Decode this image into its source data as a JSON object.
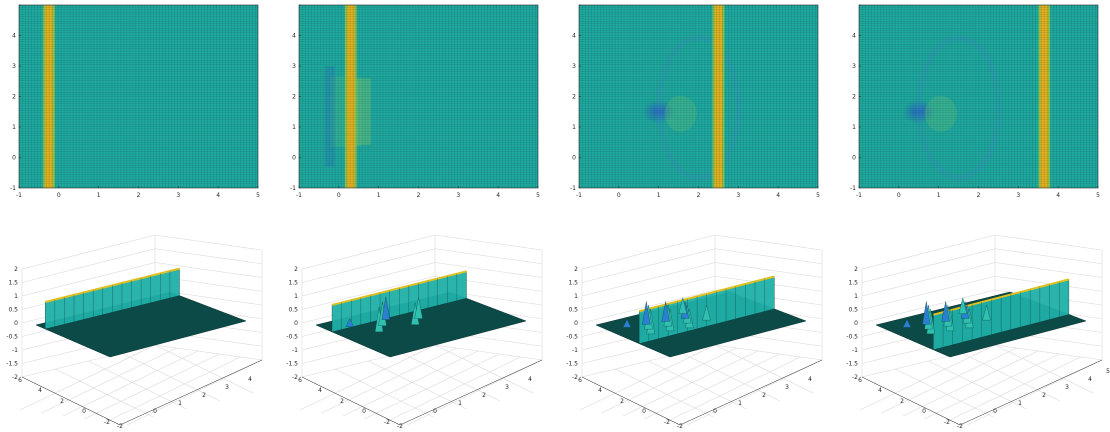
{
  "chart_data": [
    {
      "type": "heatmap",
      "panel": "top-1",
      "xlim": [
        -1,
        5
      ],
      "ylim": [
        -1,
        5
      ],
      "xticks": [
        "-1",
        "0",
        "1",
        "2",
        "3",
        "4",
        "5"
      ],
      "yticks": [
        "-1",
        "0",
        "1",
        "2",
        "3",
        "4"
      ],
      "wave_x": -0.25,
      "background_color": "#1faaa0",
      "peak_color": "#e8b21c",
      "trough_color": "#2a5fc8",
      "grid": true
    },
    {
      "type": "heatmap",
      "panel": "top-2",
      "xlim": [
        -1,
        5
      ],
      "ylim": [
        -1,
        5
      ],
      "xticks": [
        "-1",
        "0",
        "1",
        "2",
        "3",
        "4",
        "5"
      ],
      "yticks": [
        "-1",
        "0",
        "1",
        "2",
        "3",
        "4"
      ],
      "wave_x": 0.3,
      "obstacle_x": 0.0,
      "obstacle_y": [
        1.0,
        2.0
      ],
      "background_color": "#1faaa0",
      "peak_color": "#e8b21c",
      "trough_color": "#2a5fc8",
      "grid": true
    },
    {
      "type": "heatmap",
      "panel": "top-3",
      "xlim": [
        -1,
        5
      ],
      "ylim": [
        -1,
        5
      ],
      "xticks": [
        "-1",
        "0",
        "1",
        "2",
        "3",
        "4",
        "5"
      ],
      "yticks": [
        "-1",
        "0",
        "1",
        "2",
        "3",
        "4"
      ],
      "wave_x": 2.5,
      "scatter_center": [
        1.0,
        1.5
      ],
      "background_color": "#1faaa0",
      "peak_color": "#e8b21c",
      "trough_color": "#2a5fc8",
      "grid": true
    },
    {
      "type": "heatmap",
      "panel": "top-4",
      "xlim": [
        -1,
        5
      ],
      "ylim": [
        -1,
        5
      ],
      "xticks": [
        "-1",
        "0",
        "1",
        "2",
        "3",
        "4",
        "5"
      ],
      "yticks": [
        "-1",
        "0",
        "1",
        "2",
        "3",
        "4"
      ],
      "wave_x": 3.65,
      "scatter_center": [
        0.5,
        1.5
      ],
      "background_color": "#1faaa0",
      "peak_color": "#e8b21c",
      "trough_color": "#2a5fc8",
      "grid": true
    },
    {
      "type": "surface",
      "panel": "bottom-1",
      "zlim": [
        -2,
        2
      ],
      "zticks": [
        "-2",
        "-1.5",
        "-1",
        "-0.5",
        "0",
        "0.5",
        "1",
        "1.5",
        "2"
      ],
      "yticks": [
        "-2",
        "0",
        "2",
        "4",
        "6"
      ],
      "xticks": [
        "-2",
        "0",
        "1",
        "2",
        "3",
        "4"
      ],
      "wave_x": -0.25,
      "peak_height": 1.0,
      "plane_color": "#0c4a48",
      "peak_color": "#e0c020",
      "grid": true
    },
    {
      "type": "surface",
      "panel": "bottom-2",
      "zlim": [
        -2,
        2
      ],
      "zticks": [
        "-2",
        "-1.5",
        "-1",
        "-0.5",
        "0",
        "0.5",
        "1",
        "1.5",
        "2"
      ],
      "yticks": [
        "-2",
        "0",
        "2",
        "4",
        "6"
      ],
      "xticks": [
        "-2",
        "0",
        "1",
        "2",
        "3",
        "4"
      ],
      "wave_x": 0.3,
      "peak_height": 1.0,
      "plane_color": "#0c4a48",
      "peak_color": "#e0c020",
      "grid": true
    },
    {
      "type": "surface",
      "panel": "bottom-3",
      "zlim": [
        -2,
        2
      ],
      "zticks": [
        "-2",
        "-1.5",
        "-1",
        "-0.5",
        "0",
        "0.5",
        "1",
        "1.5",
        "2"
      ],
      "yticks": [
        "-2",
        "0",
        "2",
        "4",
        "6"
      ],
      "xticks": [
        "-2",
        "0",
        "1",
        "2",
        "3",
        "4"
      ],
      "wave_x": 2.5,
      "peak_height": 1.2,
      "plane_color": "#0c4a48",
      "peak_color": "#e0c020",
      "grid": true
    },
    {
      "type": "surface",
      "panel": "bottom-4",
      "zlim": [
        -2,
        2
      ],
      "zticks": [
        "-2",
        "-1.5",
        "-1",
        "-0.5",
        "0",
        "0.5",
        "1",
        "1.5",
        "2"
      ],
      "yticks": [
        "-2",
        "0",
        "2",
        "4",
        "6"
      ],
      "xticks": [
        "-2",
        "0",
        "1",
        "2",
        "3",
        "4",
        "5"
      ],
      "wave_x": 3.65,
      "peak_height": 1.3,
      "plane_color": "#0c4a48",
      "peak_color": "#e0c020",
      "grid": true
    }
  ]
}
